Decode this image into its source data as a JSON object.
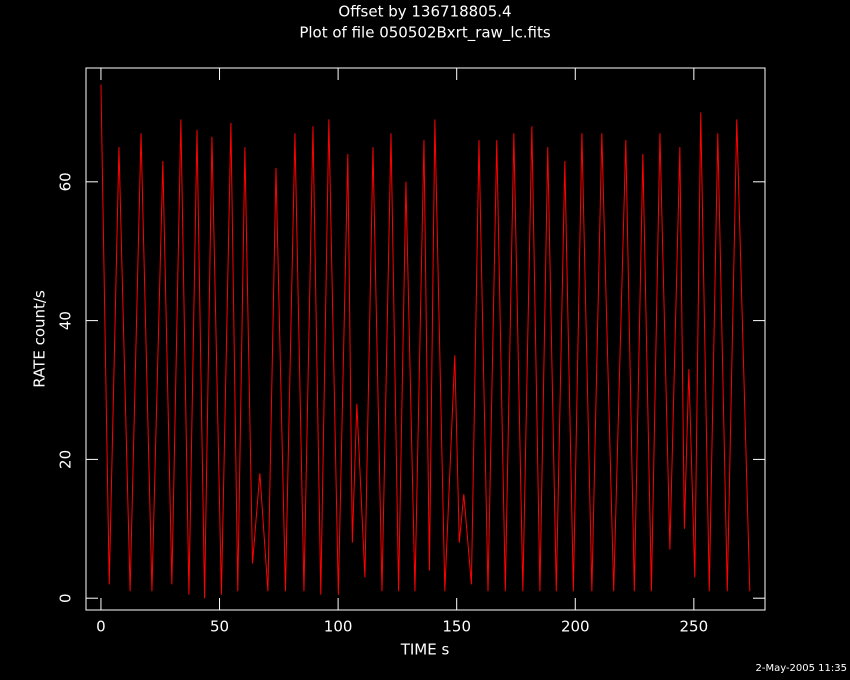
{
  "chart_data": {
    "type": "line",
    "title": "Offset by 136718805.4",
    "subtitle": "Plot of file 050502Bxrt_raw_lc.fits",
    "x_label": "TIME  s",
    "y_label": "RATE  count/s",
    "timestamp": "2-May-2005 11:35",
    "xlim": [
      -6.3,
      280
    ],
    "ylim": [
      -1.7,
      76.4
    ],
    "xticks": [
      0,
      50,
      100,
      150,
      200,
      250
    ],
    "yticks": [
      0,
      20,
      40,
      60
    ],
    "series": [
      {
        "color": "#ff0000",
        "x": [
          0,
          3.5,
          7.6,
          12.3,
          16.9,
          21.5,
          26.1,
          29.9,
          33.7,
          37.1,
          40.5,
          43.7,
          46.8,
          50.8,
          54.8,
          57.7,
          60.7,
          63.9,
          67.0,
          70.4,
          73.8,
          77.8,
          81.8,
          85.6,
          89.4,
          92.7,
          96.1,
          100.1,
          104.1,
          106,
          107.9,
          111.3,
          114.7,
          118.5,
          122.3,
          125.5,
          128.6,
          132.4,
          136.2,
          138.5,
          140.8,
          145,
          149.2,
          151.1,
          153.0,
          156.2,
          159.4,
          163.2,
          166.9,
          170.5,
          174.1,
          177.9,
          181.7,
          185.1,
          188.4,
          192,
          195.6,
          199.2,
          202.8,
          207,
          211.2,
          216.2,
          221.3,
          224.9,
          228.5,
          232.1,
          235.7,
          239.9,
          244.1,
          246,
          247.9,
          250.4,
          252.9,
          256.5,
          260.1,
          264.1,
          268.1,
          273.6
        ],
        "values": [
          74,
          2,
          65,
          1,
          67,
          1,
          63,
          2,
          69,
          0.5,
          67.5,
          0,
          66.5,
          0.5,
          68.5,
          1,
          65,
          5,
          18,
          1,
          62,
          1,
          67,
          1,
          68,
          0.5,
          69,
          0.5,
          64,
          8,
          28,
          3,
          65,
          1,
          67,
          1,
          60,
          1,
          66,
          4,
          69,
          1,
          35,
          8,
          15,
          2,
          66,
          1,
          66,
          1,
          67,
          1,
          68,
          1,
          65,
          1,
          63,
          1,
          67,
          1,
          67,
          1,
          66,
          1,
          64,
          1,
          67,
          7,
          65,
          10,
          33,
          3,
          70,
          1,
          67,
          1,
          69,
          1
        ]
      }
    ]
  }
}
